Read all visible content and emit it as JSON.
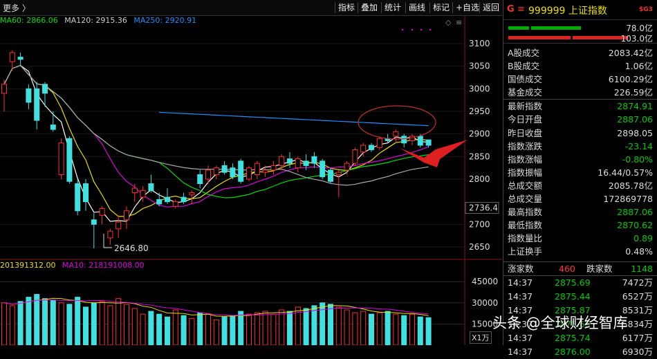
{
  "toolbar": {
    "more_label": "更多 〉",
    "buttons": [
      "指标",
      "叠加",
      "统计",
      "画线",
      "标记",
      "+自选",
      "返回"
    ]
  },
  "ma_legend": [
    {
      "text": "MA60: 2866.06",
      "color": "#00e000"
    },
    {
      "text": "MA120: 2915.36",
      "color": "#cccccc"
    },
    {
      "text": "MA250: 2920.91",
      "color": "#1e90ff"
    }
  ],
  "vol_legend": [
    {
      "text": "201391312.00",
      "color": "#e8e000"
    },
    {
      "text": "MA10: 218191008.00",
      "color": "#e000e0"
    }
  ],
  "chart_data": {
    "type": "candlestick",
    "y_ticks": [
      3100,
      3050,
      3000,
      2950,
      2900,
      2850,
      2800,
      2736.4,
      2700,
      2650
    ],
    "ylim": [
      2625,
      3135
    ],
    "volume_ticks": [
      "45000",
      "30000",
      "15000"
    ],
    "volume_unit": "X1万",
    "low_annotation": "2646.80",
    "low_value": 2646.8,
    "candles": [
      {
        "o": 2990,
        "h": 3020,
        "l": 2950,
        "c": 3010
      },
      {
        "o": 3060,
        "h": 3085,
        "l": 3040,
        "c": 3080
      },
      {
        "o": 3070,
        "h": 3080,
        "l": 3050,
        "c": 3065
      },
      {
        "o": 3000,
        "h": 3010,
        "l": 2955,
        "c": 2970
      },
      {
        "o": 3000,
        "h": 3015,
        "l": 2910,
        "c": 2930
      },
      {
        "o": 3010,
        "h": 3015,
        "l": 2960,
        "c": 2990
      },
      {
        "o": 2920,
        "h": 2950,
        "l": 2905,
        "c": 2910
      },
      {
        "o": 2810,
        "h": 2890,
        "l": 2800,
        "c": 2880
      },
      {
        "o": 2890,
        "h": 2895,
        "l": 2790,
        "c": 2795
      },
      {
        "o": 2790,
        "h": 2800,
        "l": 2720,
        "c": 2730
      },
      {
        "o": 2790,
        "h": 2800,
        "l": 2730,
        "c": 2750
      },
      {
        "o": 2710,
        "h": 2725,
        "l": 2647,
        "c": 2700
      },
      {
        "o": 2720,
        "h": 2740,
        "l": 2700,
        "c": 2735
      },
      {
        "o": 2670,
        "h": 2690,
        "l": 2655,
        "c": 2685
      },
      {
        "o": 2690,
        "h": 2720,
        "l": 2670,
        "c": 2705
      },
      {
        "o": 2710,
        "h": 2740,
        "l": 2690,
        "c": 2730
      },
      {
        "o": 2770,
        "h": 2790,
        "l": 2750,
        "c": 2780
      },
      {
        "o": 2760,
        "h": 2785,
        "l": 2750,
        "c": 2775
      },
      {
        "o": 2790,
        "h": 2810,
        "l": 2770,
        "c": 2775
      },
      {
        "o": 2755,
        "h": 2770,
        "l": 2740,
        "c": 2745
      },
      {
        "o": 2760,
        "h": 2780,
        "l": 2745,
        "c": 2750
      },
      {
        "o": 2740,
        "h": 2755,
        "l": 2735,
        "c": 2750
      },
      {
        "o": 2760,
        "h": 2770,
        "l": 2745,
        "c": 2750
      },
      {
        "o": 2765,
        "h": 2775,
        "l": 2745,
        "c": 2770
      },
      {
        "o": 2810,
        "h": 2820,
        "l": 2780,
        "c": 2790
      },
      {
        "o": 2800,
        "h": 2830,
        "l": 2790,
        "c": 2820
      },
      {
        "o": 2810,
        "h": 2830,
        "l": 2800,
        "c": 2825
      },
      {
        "o": 2830,
        "h": 2840,
        "l": 2810,
        "c": 2815
      },
      {
        "o": 2825,
        "h": 2835,
        "l": 2800,
        "c": 2805
      },
      {
        "o": 2840,
        "h": 2845,
        "l": 2790,
        "c": 2795
      },
      {
        "o": 2800,
        "h": 2830,
        "l": 2795,
        "c": 2825
      },
      {
        "o": 2810,
        "h": 2840,
        "l": 2800,
        "c": 2835
      },
      {
        "o": 2815,
        "h": 2830,
        "l": 2805,
        "c": 2820
      },
      {
        "o": 2820,
        "h": 2840,
        "l": 2810,
        "c": 2830
      },
      {
        "o": 2830,
        "h": 2855,
        "l": 2820,
        "c": 2850
      },
      {
        "o": 2845,
        "h": 2860,
        "l": 2825,
        "c": 2835
      },
      {
        "o": 2825,
        "h": 2850,
        "l": 2815,
        "c": 2845
      },
      {
        "o": 2840,
        "h": 2855,
        "l": 2820,
        "c": 2830
      },
      {
        "o": 2850,
        "h": 2860,
        "l": 2825,
        "c": 2835
      },
      {
        "o": 2840,
        "h": 2845,
        "l": 2800,
        "c": 2805
      },
      {
        "o": 2820,
        "h": 2825,
        "l": 2790,
        "c": 2795
      },
      {
        "o": 2810,
        "h": 2820,
        "l": 2760,
        "c": 2815
      },
      {
        "o": 2820,
        "h": 2840,
        "l": 2810,
        "c": 2835
      },
      {
        "o": 2835,
        "h": 2870,
        "l": 2830,
        "c": 2865
      },
      {
        "o": 2860,
        "h": 2880,
        "l": 2850,
        "c": 2875
      },
      {
        "o": 2875,
        "h": 2880,
        "l": 2860,
        "c": 2865
      },
      {
        "o": 2870,
        "h": 2895,
        "l": 2865,
        "c": 2890
      },
      {
        "o": 2890,
        "h": 2900,
        "l": 2880,
        "c": 2885
      },
      {
        "o": 2895,
        "h": 2910,
        "l": 2880,
        "c": 2905
      },
      {
        "o": 2895,
        "h": 2900,
        "l": 2870,
        "c": 2880
      },
      {
        "o": 2885,
        "h": 2900,
        "l": 2875,
        "c": 2895
      },
      {
        "o": 2895,
        "h": 2900,
        "l": 2870,
        "c": 2875
      },
      {
        "o": 2887,
        "h": 2887,
        "l": 2870,
        "c": 2875
      }
    ],
    "volumes": [
      30000,
      28000,
      31000,
      34000,
      36000,
      33000,
      32000,
      30000,
      29000,
      34000,
      27000,
      30000,
      31000,
      28000,
      33000,
      29000,
      26000,
      22000,
      24000,
      22000,
      20000,
      25000,
      21000,
      19000,
      23000,
      22000,
      18000,
      20000,
      21000,
      24000,
      22000,
      23000,
      24000,
      22000,
      25000,
      24000,
      27000,
      26000,
      28000,
      30000,
      29000,
      27000,
      25000,
      23000,
      24000,
      22000,
      23000,
      24000,
      22000,
      21000,
      22000,
      20000,
      19500
    ]
  },
  "panel": {
    "g_label": "G",
    "eq_label": "≡",
    "title": "999999 上证指数",
    "sg_label": "$G3",
    "bar1_value": "78.0亿",
    "bar2_value": "103.0亿",
    "rows": [
      {
        "label": "A股成交",
        "value": "2083.42亿",
        "color": "white"
      },
      {
        "label": "B股成交",
        "value": "1.06亿",
        "color": "white"
      },
      {
        "label": "国债成交",
        "value": "6100.29亿",
        "color": "white"
      },
      {
        "label": "基金成交",
        "value": "226.59亿",
        "color": "white"
      },
      {
        "label": "最新指数",
        "value": "2874.91",
        "color": "green"
      },
      {
        "label": "今日开盘",
        "value": "2887.06",
        "color": "green"
      },
      {
        "label": "昨日收盘",
        "value": "2898.05",
        "color": "white"
      },
      {
        "label": "指数涨跌",
        "value": "-23.14",
        "color": "green"
      },
      {
        "label": "指数涨幅",
        "value": "-0.80%",
        "color": "green"
      },
      {
        "label": "指数振幅",
        "value": "16.44/0.57%",
        "color": "white"
      },
      {
        "label": "总成交额",
        "value": "2085.78亿",
        "color": "white"
      },
      {
        "label": "总成交量",
        "value": "172869778",
        "color": "white"
      },
      {
        "label": "最高指数",
        "value": "2887.06",
        "color": "green"
      },
      {
        "label": "最低指数",
        "value": "2870.62",
        "color": "green"
      },
      {
        "label": "指数量比",
        "value": "0.89",
        "color": "green"
      },
      {
        "label": "上证换手",
        "value": "0.48%",
        "color": "white"
      }
    ],
    "up_label": "涨家数",
    "up_value": "460",
    "down_label": "跌家数",
    "down_value": "1148",
    "ticks": [
      {
        "time": "14:37",
        "price": "2875.69",
        "vol": "7472万"
      },
      {
        "time": "14:37",
        "price": "2875.44",
        "vol": "6527万"
      },
      {
        "time": "14:37",
        "price": "2875.87",
        "vol": "8531万"
      },
      {
        "time": "14:37",
        "price": "2875.65",
        "vol": "5834万"
      },
      {
        "time": "14:37",
        "price": "2875.74",
        "vol": "6177万"
      },
      {
        "time": "14:37",
        "price": "2876.00",
        "vol": "6930万"
      }
    ]
  },
  "watermark": "头条 @全球财经智库"
}
